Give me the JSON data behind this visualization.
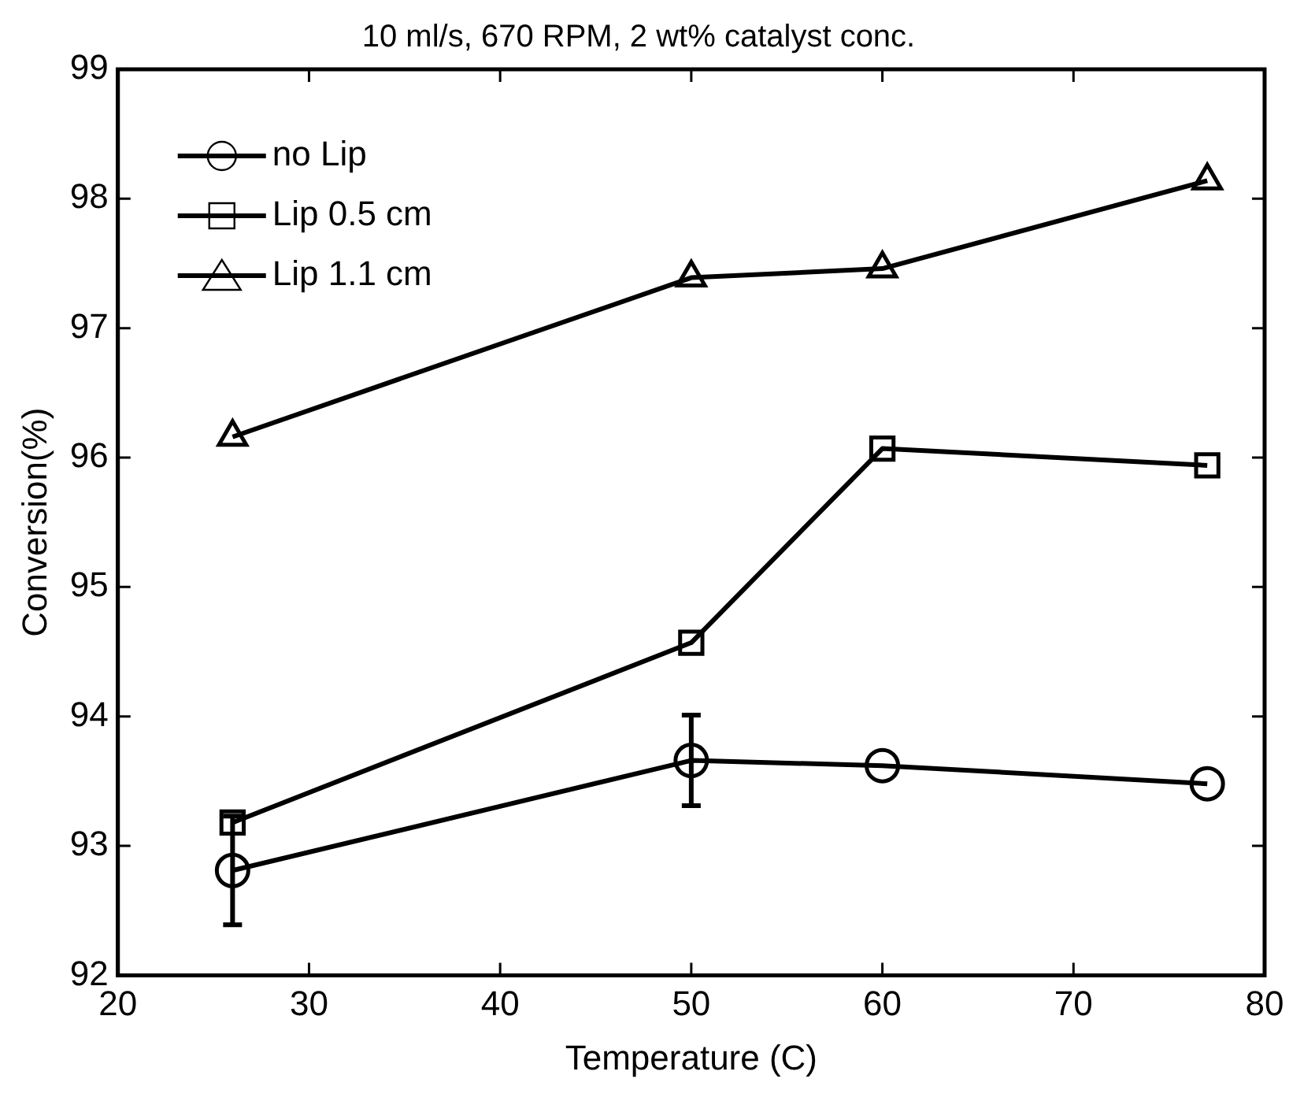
{
  "chart_data": {
    "type": "line",
    "title": "10 ml/s, 670 RPM, 2 wt% catalyst conc.",
    "xlabel": "Temperature (C)",
    "ylabel": "Conversion(%)",
    "x": [
      26,
      50,
      60,
      77
    ],
    "series": [
      {
        "name": "no Lip",
        "color": "#000000",
        "marker": "circle",
        "values": [
          92.81,
          93.66,
          93.62,
          93.48
        ],
        "errors": [
          0.42,
          0.35,
          null,
          null
        ]
      },
      {
        "name": "Lip 0.5 cm",
        "color": "#000000",
        "marker": "square",
        "values": [
          93.18,
          94.57,
          96.07,
          95.94
        ]
      },
      {
        "name": "Lip 1.1 cm",
        "color": "#000000",
        "marker": "triangle",
        "values": [
          96.16,
          97.39,
          97.46,
          98.14
        ]
      }
    ],
    "xlim": [
      20,
      80
    ],
    "xticks": [
      20,
      30,
      40,
      50,
      60,
      70,
      80
    ],
    "ylim": [
      92,
      99
    ],
    "yticks": [
      92,
      93,
      94,
      95,
      96,
      97,
      98,
      99
    ],
    "grid": false,
    "legend": "top left",
    "line_style": "solid"
  }
}
